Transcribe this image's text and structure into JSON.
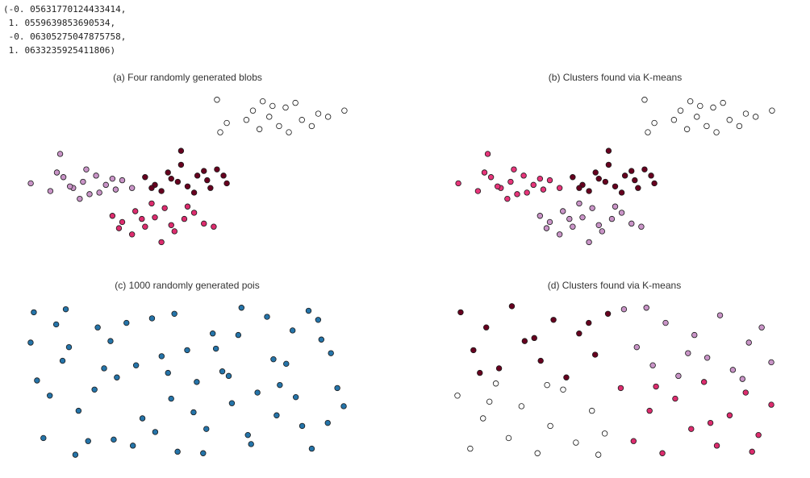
{
  "output": [
    "(-0. 05631770124433414,",
    " 1. 0559639853690534,",
    " -0. 06305275047875758,",
    " 1. 0633235925411806)"
  ],
  "chart_data": [
    {
      "type": "scatter",
      "title": "(a) Four randomly generated blobs",
      "xlim": [
        0,
        1
      ],
      "ylim": [
        0,
        1
      ],
      "series": [
        {
          "color": "#ffffff",
          "x": [
            0.62,
            0.7,
            0.75,
            0.8,
            0.85,
            0.9,
            0.72,
            0.78,
            0.83,
            0.68,
            0.88,
            0.93,
            0.6,
            0.76,
            0.81,
            0.73,
            0.98,
            0.59
          ],
          "values": [
            0.82,
            0.9,
            0.86,
            0.92,
            0.84,
            0.88,
            0.78,
            0.8,
            0.95,
            0.84,
            0.8,
            0.86,
            0.76,
            0.93,
            0.76,
            0.96,
            0.9,
            0.97
          ]
        },
        {
          "color": "#c994c7",
          "x": [
            0.02,
            0.08,
            0.12,
            0.15,
            0.18,
            0.2,
            0.22,
            0.25,
            0.28,
            0.3,
            0.1,
            0.17,
            0.23,
            0.27,
            0.14,
            0.19,
            0.33,
            0.11
          ],
          "values": [
            0.43,
            0.38,
            0.47,
            0.4,
            0.44,
            0.36,
            0.48,
            0.42,
            0.39,
            0.45,
            0.5,
            0.33,
            0.37,
            0.46,
            0.41,
            0.52,
            0.4,
            0.62
          ]
        },
        {
          "color": "#67001f",
          "x": [
            0.37,
            0.4,
            0.44,
            0.47,
            0.5,
            0.53,
            0.56,
            0.59,
            0.62,
            0.42,
            0.48,
            0.52,
            0.57,
            0.45,
            0.55,
            0.61,
            0.39,
            0.48
          ],
          "values": [
            0.47,
            0.42,
            0.5,
            0.44,
            0.41,
            0.48,
            0.45,
            0.52,
            0.43,
            0.38,
            0.55,
            0.37,
            0.4,
            0.46,
            0.51,
            0.48,
            0.4,
            0.64
          ]
        },
        {
          "color": "#dd2c6e",
          "x": [
            0.27,
            0.3,
            0.34,
            0.37,
            0.4,
            0.43,
            0.46,
            0.49,
            0.52,
            0.55,
            0.33,
            0.39,
            0.45,
            0.5,
            0.36,
            0.42,
            0.58,
            0.29
          ],
          "values": [
            0.22,
            0.18,
            0.25,
            0.15,
            0.21,
            0.27,
            0.12,
            0.2,
            0.24,
            0.17,
            0.1,
            0.3,
            0.16,
            0.28,
            0.2,
            0.05,
            0.15,
            0.14
          ]
        }
      ]
    },
    {
      "type": "scatter",
      "title": "(b) Clusters found via K-means",
      "xlim": [
        0,
        1
      ],
      "ylim": [
        0,
        1
      ],
      "series": [
        {
          "color": "#ffffff",
          "x": [
            0.62,
            0.7,
            0.75,
            0.8,
            0.85,
            0.9,
            0.72,
            0.78,
            0.83,
            0.68,
            0.88,
            0.93,
            0.6,
            0.76,
            0.81,
            0.73,
            0.98,
            0.59
          ],
          "values": [
            0.82,
            0.9,
            0.86,
            0.92,
            0.84,
            0.88,
            0.78,
            0.8,
            0.95,
            0.84,
            0.8,
            0.86,
            0.76,
            0.93,
            0.76,
            0.96,
            0.9,
            0.97
          ]
        },
        {
          "color": "#e7357a",
          "x": [
            0.02,
            0.08,
            0.12,
            0.15,
            0.18,
            0.2,
            0.22,
            0.25,
            0.28,
            0.3,
            0.1,
            0.17,
            0.23,
            0.27,
            0.14,
            0.19,
            0.33,
            0.11
          ],
          "values": [
            0.43,
            0.38,
            0.47,
            0.4,
            0.44,
            0.36,
            0.48,
            0.42,
            0.39,
            0.45,
            0.5,
            0.33,
            0.37,
            0.46,
            0.41,
            0.52,
            0.4,
            0.62
          ]
        },
        {
          "color": "#67001f",
          "x": [
            0.37,
            0.4,
            0.44,
            0.47,
            0.5,
            0.53,
            0.56,
            0.59,
            0.62,
            0.42,
            0.48,
            0.52,
            0.57,
            0.45,
            0.55,
            0.61,
            0.39,
            0.48
          ],
          "values": [
            0.47,
            0.42,
            0.5,
            0.44,
            0.41,
            0.48,
            0.45,
            0.52,
            0.43,
            0.38,
            0.55,
            0.37,
            0.4,
            0.46,
            0.51,
            0.48,
            0.4,
            0.64
          ]
        },
        {
          "color": "#c994c7",
          "x": [
            0.27,
            0.3,
            0.34,
            0.37,
            0.4,
            0.43,
            0.46,
            0.49,
            0.52,
            0.55,
            0.33,
            0.39,
            0.45,
            0.5,
            0.36,
            0.42,
            0.58,
            0.29
          ],
          "values": [
            0.22,
            0.18,
            0.25,
            0.15,
            0.21,
            0.27,
            0.12,
            0.2,
            0.24,
            0.17,
            0.1,
            0.3,
            0.16,
            0.28,
            0.2,
            0.05,
            0.15,
            0.14
          ]
        }
      ]
    },
    {
      "type": "scatter",
      "title": "(c) 1000 randomly generated pois",
      "xlim": [
        0,
        1
      ],
      "ylim": [
        0,
        1
      ],
      "series": [
        {
          "color": "#2574a9",
          "x": [
            0.02,
            0.07,
            0.13,
            0.19,
            0.24,
            0.31,
            0.36,
            0.42,
            0.47,
            0.53,
            0.58,
            0.64,
            0.69,
            0.75,
            0.81,
            0.86,
            0.92,
            0.97,
            0.05,
            0.11,
            0.16,
            0.22,
            0.28,
            0.33,
            0.39,
            0.45,
            0.5,
            0.56,
            0.61,
            0.67,
            0.72,
            0.78,
            0.83,
            0.89,
            0.95,
            0.99,
            0.03,
            0.09,
            0.15,
            0.21,
            0.26,
            0.34,
            0.4,
            0.46,
            0.52,
            0.59,
            0.63,
            0.7,
            0.77,
            0.84,
            0.88,
            0.94,
            0.01,
            0.12,
            0.27,
            0.44,
            0.55,
            0.66,
            0.79,
            0.91
          ],
          "values": [
            0.95,
            0.4,
            0.72,
            0.1,
            0.58,
            0.88,
            0.25,
            0.66,
            0.03,
            0.49,
            0.81,
            0.35,
            0.14,
            0.92,
            0.61,
            0.2,
            0.77,
            0.45,
            0.12,
            0.63,
            0.3,
            0.85,
            0.52,
            0.07,
            0.91,
            0.38,
            0.7,
            0.18,
            0.56,
            0.98,
            0.42,
            0.27,
            0.83,
            0.05,
            0.68,
            0.33,
            0.5,
            0.87,
            0.01,
            0.44,
            0.76,
            0.6,
            0.16,
            0.94,
            0.29,
            0.71,
            0.53,
            0.08,
            0.64,
            0.39,
            0.96,
            0.22,
            0.75,
            0.97,
            0.11,
            0.55,
            0.02,
            0.8,
            0.47,
            0.9
          ]
        }
      ]
    },
    {
      "type": "scatter",
      "title": "(d) Clusters found via K-means",
      "xlim": [
        0,
        1
      ],
      "ylim": [
        0,
        1
      ],
      "series": [
        {
          "color": "#67001f",
          "x": [
            0.02,
            0.06,
            0.1,
            0.14,
            0.18,
            0.22,
            0.27,
            0.31,
            0.35,
            0.39,
            0.44,
            0.48,
            0.08,
            0.25,
            0.42
          ],
          "values": [
            0.95,
            0.7,
            0.85,
            0.58,
            0.99,
            0.76,
            0.63,
            0.9,
            0.52,
            0.81,
            0.67,
            0.94,
            0.55,
            0.78,
            0.88
          ]
        },
        {
          "color": "#c994c7",
          "x": [
            0.53,
            0.57,
            0.62,
            0.66,
            0.7,
            0.75,
            0.79,
            0.83,
            0.87,
            0.92,
            0.96,
            0.99,
            0.6,
            0.73,
            0.9
          ],
          "values": [
            0.97,
            0.72,
            0.6,
            0.88,
            0.53,
            0.8,
            0.65,
            0.93,
            0.57,
            0.75,
            0.85,
            0.62,
            0.98,
            0.68,
            0.51
          ]
        },
        {
          "color": "#ffffff",
          "x": [
            0.01,
            0.05,
            0.09,
            0.13,
            0.17,
            0.21,
            0.26,
            0.3,
            0.34,
            0.38,
            0.43,
            0.47,
            0.11,
            0.29,
            0.45
          ],
          "values": [
            0.4,
            0.05,
            0.25,
            0.48,
            0.12,
            0.33,
            0.02,
            0.2,
            0.44,
            0.09,
            0.3,
            0.15,
            0.36,
            0.47,
            0.01
          ]
        },
        {
          "color": "#dd2c6e",
          "x": [
            0.52,
            0.56,
            0.61,
            0.65,
            0.69,
            0.74,
            0.78,
            0.82,
            0.86,
            0.91,
            0.95,
            0.99,
            0.63,
            0.8,
            0.93
          ],
          "values": [
            0.45,
            0.1,
            0.3,
            0.02,
            0.38,
            0.18,
            0.49,
            0.07,
            0.27,
            0.42,
            0.14,
            0.34,
            0.46,
            0.22,
            0.03
          ]
        }
      ]
    }
  ]
}
